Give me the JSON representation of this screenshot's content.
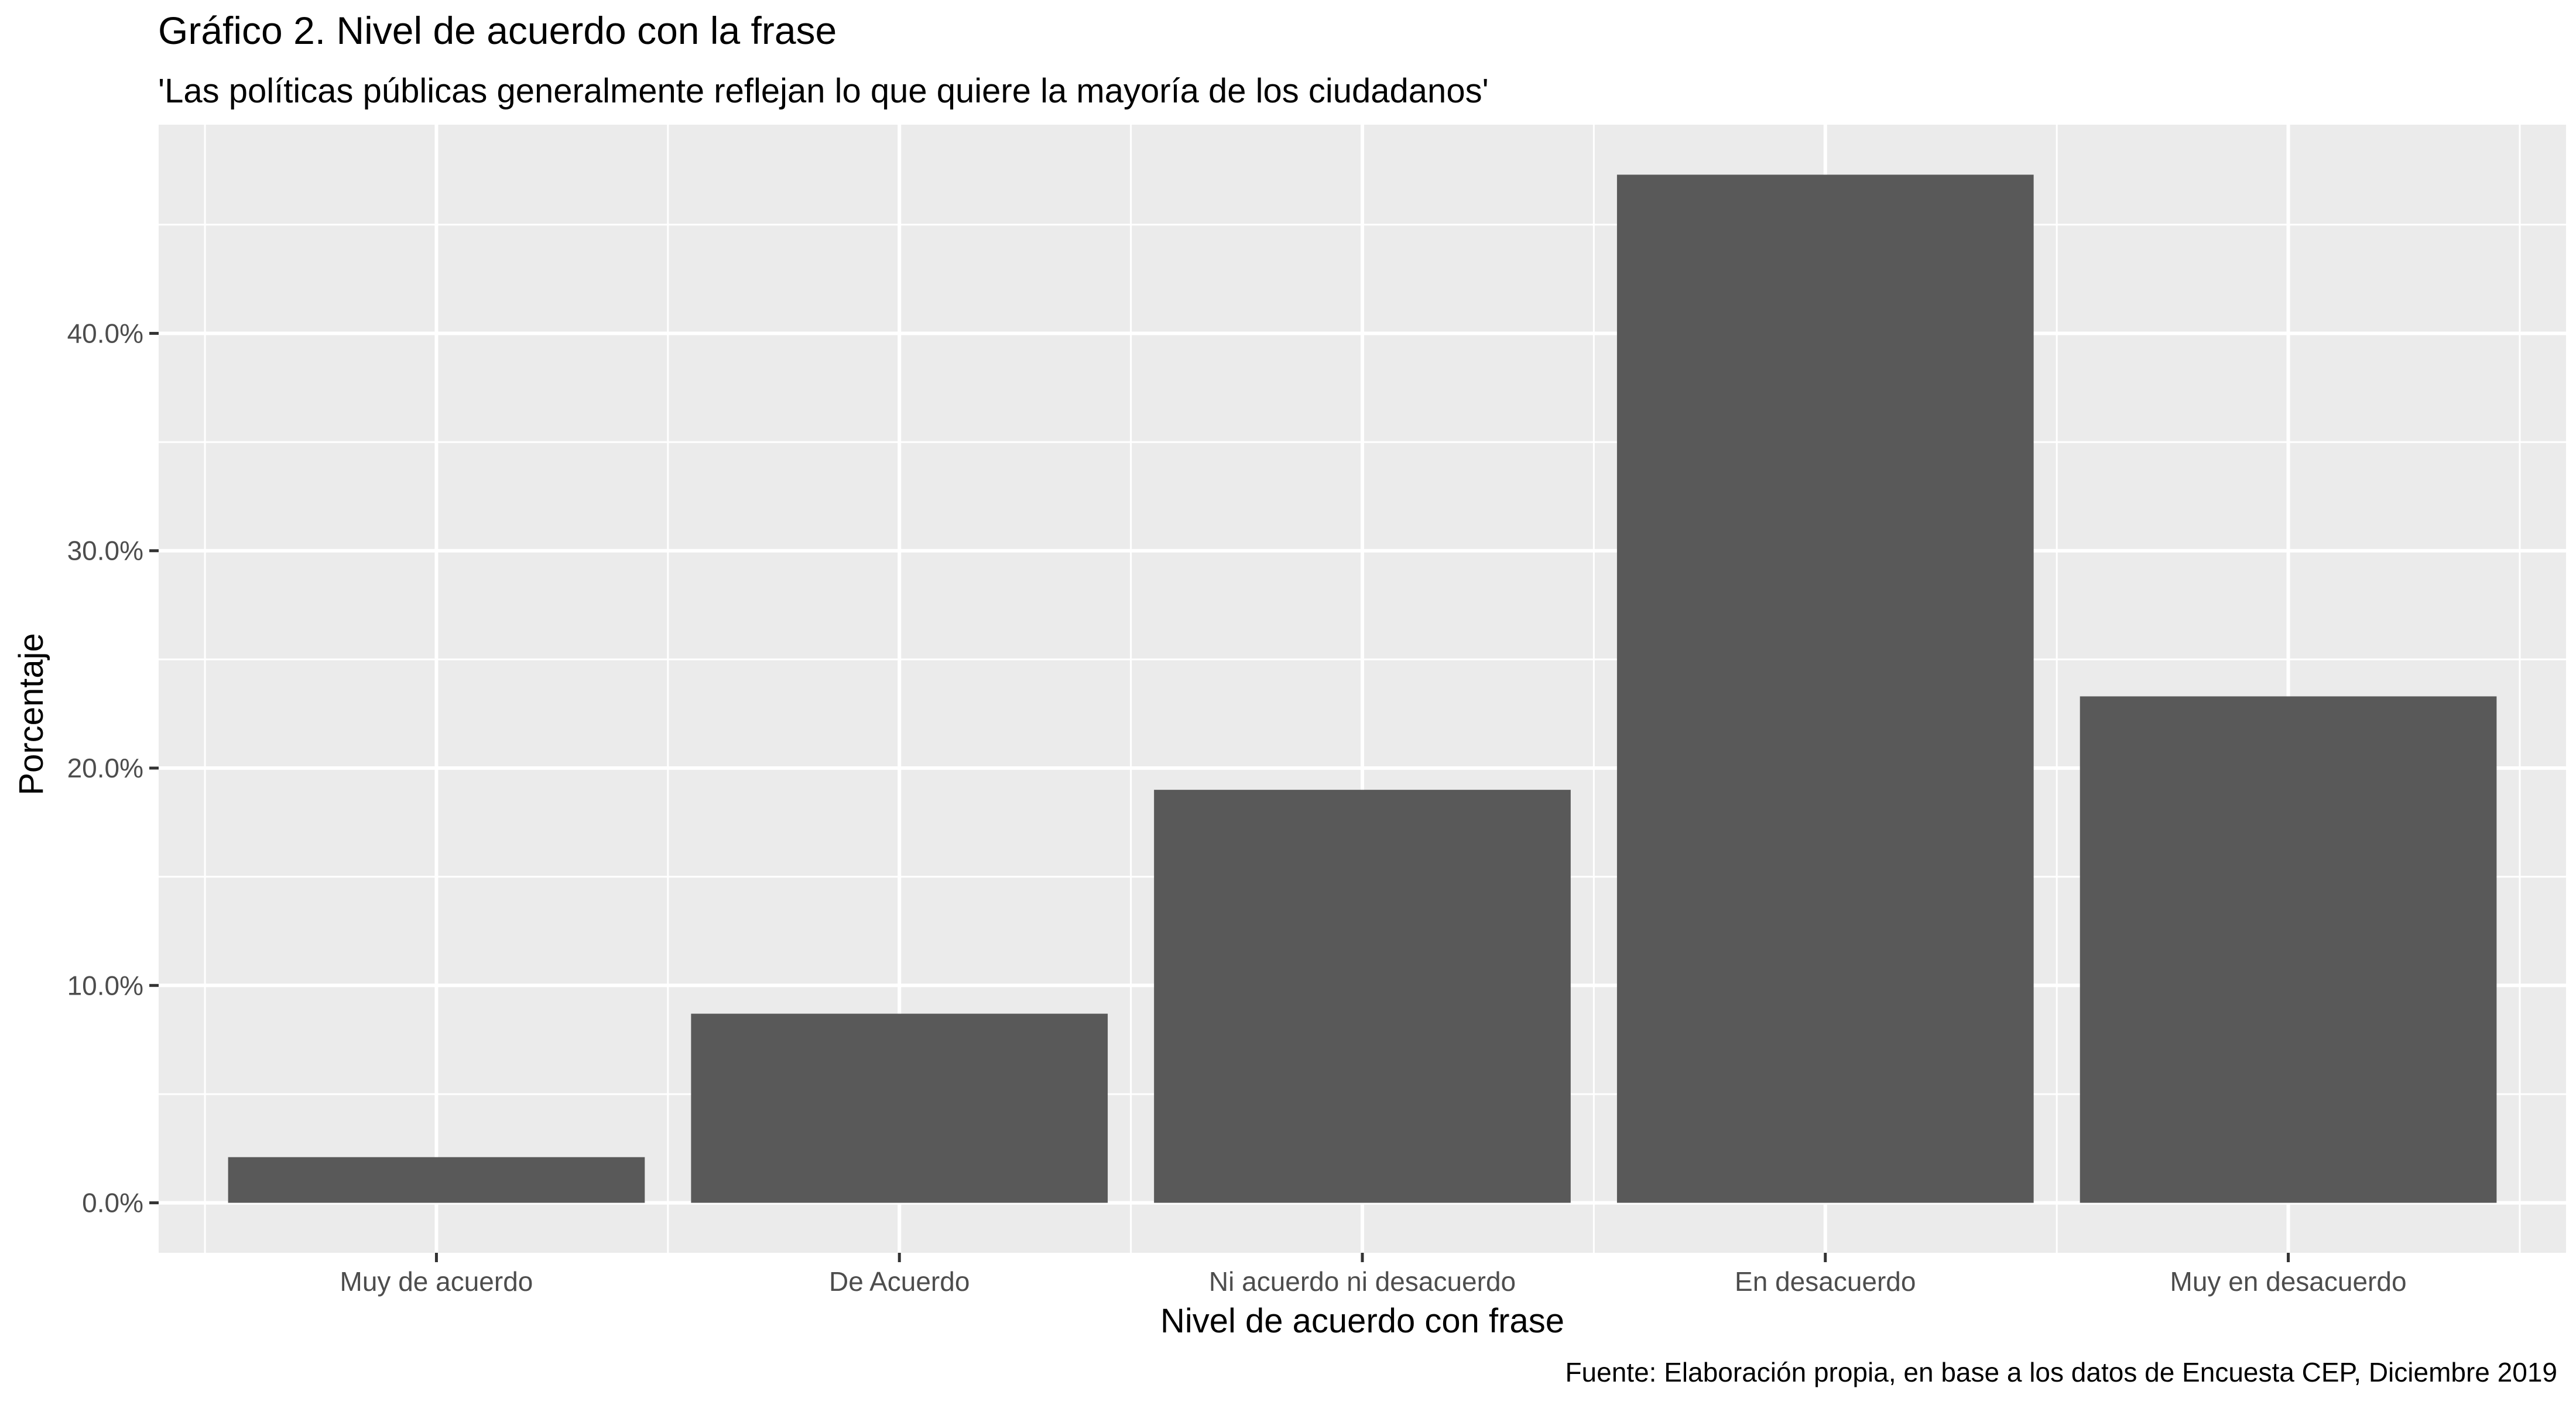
{
  "chart_data": {
    "type": "bar",
    "title": "Gráfico 2. Nivel de acuerdo con la frase",
    "subtitle": "'Las políticas públicas generalmente reflejan lo que quiere la mayoría de los ciudadanos'",
    "xlabel": "Nivel de acuerdo con frase",
    "ylabel": "Porcentaje",
    "caption": "Fuente: Elaboración propia, en base a los datos de Encuesta CEP, Diciembre 2019",
    "categories": [
      "Muy de acuerdo",
      "De Acuerdo",
      "Ni acuerdo ni desacuerdo",
      "En desacuerdo",
      "Muy en desacuerdo"
    ],
    "values": [
      2.1,
      8.7,
      19.0,
      47.3,
      23.3
    ],
    "ylim": [
      -2.3,
      49.6
    ],
    "yticks": [
      0,
      10,
      20,
      30,
      40
    ],
    "ytick_labels": [
      "0.0%",
      "10.0%",
      "20.0%",
      "30.0%",
      "40.0%"
    ],
    "grid": true,
    "legend": "none",
    "colors": {
      "panel": "#ebebeb",
      "grid": "#ffffff",
      "bar": "#595959",
      "tick_text": "#4d4d4d",
      "text": "#000000"
    }
  }
}
